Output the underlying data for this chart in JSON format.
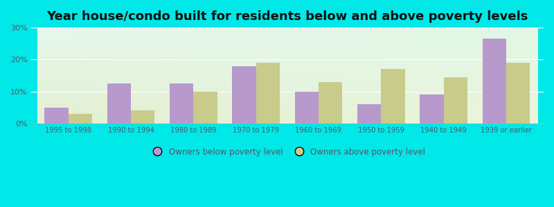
{
  "title": "Year house/condo built for residents below and above poverty levels",
  "categories": [
    "1995 to 1998",
    "1990 to 1994",
    "1980 to 1989",
    "1970 to 1979",
    "1960 to 1969",
    "1950 to 1959",
    "1940 to 1949",
    "1939 or earlier"
  ],
  "below_poverty": [
    5.0,
    12.5,
    12.5,
    18.0,
    10.0,
    6.0,
    9.0,
    26.5
  ],
  "above_poverty": [
    3.0,
    4.0,
    10.0,
    19.0,
    13.0,
    17.0,
    14.5,
    19.0
  ],
  "below_color": "#b899cc",
  "above_color": "#c8cb8a",
  "ylim": [
    0,
    30
  ],
  "yticks": [
    0,
    10,
    20,
    30
  ],
  "ytick_labels": [
    "0%",
    "10%",
    "20%",
    "30%"
  ],
  "outer_bg": "#00e8e8",
  "legend_below_label": "Owners below poverty level",
  "legend_above_label": "Owners above poverty level",
  "title_fontsize": 13,
  "bar_width": 0.38,
  "figsize": [
    8.0,
    3.0
  ],
  "dpi": 100,
  "tick_color": "#555566",
  "grid_color": "#ffffff"
}
